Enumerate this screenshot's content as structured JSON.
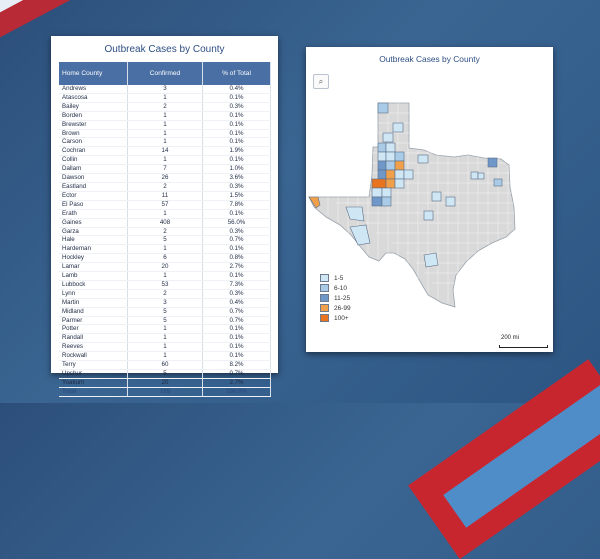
{
  "table": {
    "title": "Outbreak Cases by County",
    "headers": [
      "Home County",
      "Confirmed",
      "% of Total"
    ],
    "rows": [
      [
        "Andrews",
        "3",
        "0.4%"
      ],
      [
        "Atascosa",
        "1",
        "0.1%"
      ],
      [
        "Bailey",
        "2",
        "0.3%"
      ],
      [
        "Borden",
        "1",
        "0.1%"
      ],
      [
        "Brewster",
        "1",
        "0.1%"
      ],
      [
        "Brown",
        "1",
        "0.1%"
      ],
      [
        "Carson",
        "1",
        "0.1%"
      ],
      [
        "Cochran",
        "14",
        "1.9%"
      ],
      [
        "Collin",
        "1",
        "0.1%"
      ],
      [
        "Dallam",
        "7",
        "1.0%"
      ],
      [
        "Dawson",
        "26",
        "3.6%"
      ],
      [
        "Eastland",
        "2",
        "0.3%"
      ],
      [
        "Ector",
        "11",
        "1.5%"
      ],
      [
        "El Paso",
        "57",
        "7.8%"
      ],
      [
        "Erath",
        "1",
        "0.1%"
      ],
      [
        "Gaines",
        "408",
        "56.0%"
      ],
      [
        "Garza",
        "2",
        "0.3%"
      ],
      [
        "Hale",
        "5",
        "0.7%"
      ],
      [
        "Hardeman",
        "1",
        "0.1%"
      ],
      [
        "Hockley",
        "6",
        "0.8%"
      ],
      [
        "Lamar",
        "20",
        "2.7%"
      ],
      [
        "Lamb",
        "1",
        "0.1%"
      ],
      [
        "Lubbock",
        "53",
        "7.3%"
      ],
      [
        "Lynn",
        "2",
        "0.3%"
      ],
      [
        "Martin",
        "3",
        "0.4%"
      ],
      [
        "Midland",
        "5",
        "0.7%"
      ],
      [
        "Parmer",
        "5",
        "0.7%"
      ],
      [
        "Potter",
        "1",
        "0.1%"
      ],
      [
        "Randall",
        "1",
        "0.1%"
      ],
      [
        "Reeves",
        "1",
        "0.1%"
      ],
      [
        "Rockwall",
        "1",
        "0.1%"
      ],
      [
        "Terry",
        "60",
        "8.2%"
      ],
      [
        "Upshur",
        "5",
        "0.7%"
      ],
      [
        "Yoakum",
        "20",
        "2.7%"
      ]
    ],
    "total": [
      "Total",
      "729",
      "100.0%"
    ]
  },
  "map": {
    "title": "Outbreak Cases by County",
    "search_icon": "search-icon",
    "legend": [
      {
        "label": "1-5",
        "color": "#cfe6f5"
      },
      {
        "label": "6-10",
        "color": "#a9cbe8"
      },
      {
        "label": "11-25",
        "color": "#6f97c7"
      },
      {
        "label": "26-99",
        "color": "#f0a04b"
      },
      {
        "label": "100+",
        "color": "#e8741f"
      }
    ],
    "scale_label": "200 mi",
    "colors": {
      "base": "#d9d9d9",
      "border": "#ffffff",
      "outline": "#9aa3ad"
    }
  }
}
